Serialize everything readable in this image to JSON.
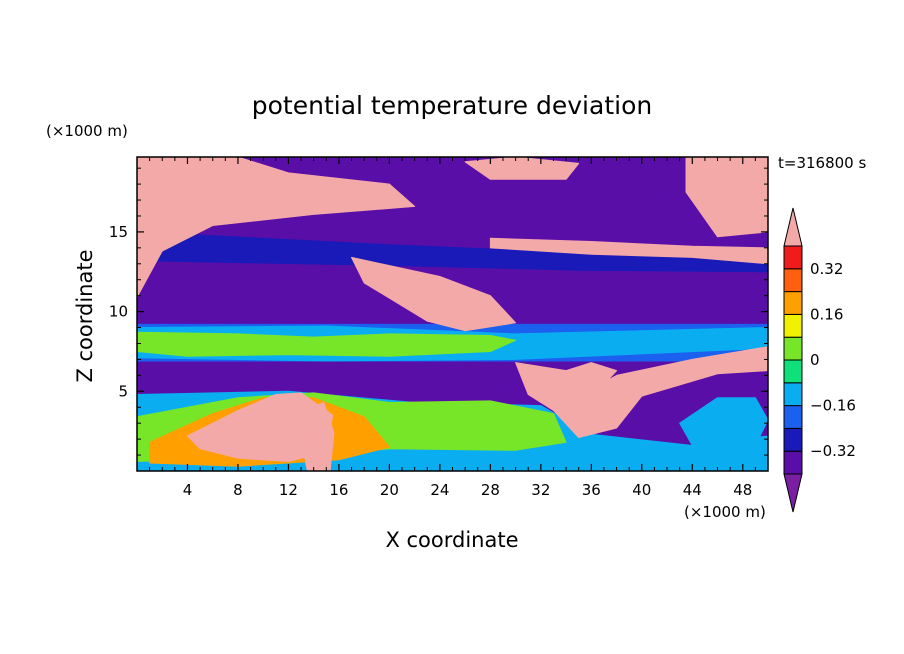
{
  "chart_data": {
    "type": "heatmap",
    "title": "potential temperature deviation",
    "xlabel": "X coordinate",
    "ylabel": "Z coordinate",
    "x_unit_label": "(×1000 m)",
    "y_unit_label": "(×1000 m)",
    "time_label": "t=316800 s",
    "xlim": [
      0,
      50
    ],
    "ylim": [
      0,
      19.7
    ],
    "x_ticks": [
      4,
      8,
      12,
      16,
      20,
      24,
      28,
      32,
      36,
      40,
      44,
      48
    ],
    "x_tick_labels": [
      "4",
      "8",
      "12",
      "16",
      "20",
      "24",
      "28",
      "32",
      "36",
      "40",
      "44",
      "48"
    ],
    "y_ticks": [
      5,
      10,
      15
    ],
    "y_tick_labels": [
      "5",
      "10",
      "15"
    ],
    "colorbar": {
      "levels": [
        -0.4,
        -0.32,
        -0.24,
        -0.16,
        -0.08,
        0,
        0.08,
        0.16,
        0.24,
        0.32,
        0.4
      ],
      "labeled_levels": [
        0.32,
        0.16,
        0,
        -0.16,
        -0.32
      ],
      "labels": [
        "0.32",
        "0.16",
        "0",
        "−0.16",
        "−0.32"
      ],
      "colors_low_to_high": [
        "#7b1fa2",
        "#5a0ea8",
        "#1a1ab8",
        "#1c60f0",
        "#0aaef0",
        "#10e07a",
        "#78e628",
        "#f0f000",
        "#ffa000",
        "#ff6010",
        "#f01c1c",
        "#f4a9a9"
      ],
      "extend": "both"
    },
    "regions": [
      {
        "name": "background-stable-layer",
        "value": -0.4,
        "poly": [
          [
            0,
            0
          ],
          [
            50,
            0
          ],
          [
            50,
            19.7
          ],
          [
            0,
            19.7
          ]
        ]
      },
      {
        "name": "low-level-band-negative",
        "value": -0.24,
        "poly": [
          [
            0,
            9.2
          ],
          [
            50,
            9.2
          ],
          [
            50,
            6.9
          ],
          [
            0,
            6.9
          ]
        ]
      },
      {
        "name": "low-level-band-core",
        "value": -0.12,
        "poly": [
          [
            0,
            9
          ],
          [
            15,
            9.1
          ],
          [
            30,
            8.6
          ],
          [
            50,
            9
          ],
          [
            50,
            7.7
          ],
          [
            30,
            7
          ],
          [
            15,
            6.9
          ],
          [
            0,
            7.1
          ]
        ]
      },
      {
        "name": "low-level-band-positive",
        "value": 0.05,
        "poly": [
          [
            0,
            8.7
          ],
          [
            8,
            8.6
          ],
          [
            14,
            8.4
          ],
          [
            20,
            8.6
          ],
          [
            28,
            8.5
          ],
          [
            30,
            8.2
          ],
          [
            28,
            7.5
          ],
          [
            20,
            7.2
          ],
          [
            12,
            7.3
          ],
          [
            4,
            7.2
          ],
          [
            0,
            7.5
          ]
        ]
      },
      {
        "name": "upper-band-negative",
        "value": -0.3,
        "poly": [
          [
            0,
            15
          ],
          [
            20,
            14.2
          ],
          [
            35,
            13.7
          ],
          [
            50,
            14
          ],
          [
            50,
            12.5
          ],
          [
            35,
            12.6
          ],
          [
            20,
            12.9
          ],
          [
            0,
            13.2
          ]
        ]
      },
      {
        "name": "upper-band-deep",
        "value": -0.35,
        "poly": [
          [
            0,
            17.2
          ],
          [
            25,
            16.8
          ],
          [
            50,
            17.3
          ],
          [
            50,
            16
          ],
          [
            25,
            15.9
          ],
          [
            0,
            16.2
          ]
        ]
      },
      {
        "name": "surface-layer-negative",
        "value": -0.15,
        "poly": [
          [
            0,
            4.8
          ],
          [
            12,
            5
          ],
          [
            22,
            4.3
          ],
          [
            32,
            4.1
          ],
          [
            36,
            2.3
          ],
          [
            44,
            1.6
          ],
          [
            50,
            2.2
          ],
          [
            50,
            0
          ],
          [
            0,
            0
          ]
        ]
      },
      {
        "name": "surface-layer-positive",
        "value": 0.05,
        "poly": [
          [
            0,
            3.4
          ],
          [
            8,
            4.6
          ],
          [
            14,
            4.9
          ],
          [
            20,
            4.3
          ],
          [
            28,
            4.4
          ],
          [
            33,
            3.6
          ],
          [
            34,
            1.8
          ],
          [
            30,
            1.3
          ],
          [
            20,
            1.4
          ],
          [
            12,
            0.8
          ],
          [
            0,
            0.6
          ]
        ]
      },
      {
        "name": "surface-warm-core",
        "value": 0.2,
        "poly": [
          [
            1,
            1.8
          ],
          [
            6,
            3.6
          ],
          [
            10,
            4.6
          ],
          [
            14,
            4.6
          ],
          [
            18,
            3.4
          ],
          [
            20,
            1.5
          ],
          [
            16,
            0.7
          ],
          [
            8,
            0.3
          ],
          [
            1,
            0.5
          ]
        ]
      },
      {
        "name": "surface-hot-core",
        "value": 0.4,
        "poly": [
          [
            4,
            2.2
          ],
          [
            8,
            3.8
          ],
          [
            11,
            4.8
          ],
          [
            13,
            4.9
          ],
          [
            15.5,
            3.5
          ],
          [
            15,
            1.2
          ],
          [
            12,
            0.6
          ],
          [
            8,
            0.8
          ],
          [
            5,
            1.4
          ]
        ]
      },
      {
        "name": "top-left-warm-patch",
        "value": 0.4,
        "poly": [
          [
            0,
            19.7
          ],
          [
            8,
            19.7
          ],
          [
            12,
            18.7
          ],
          [
            20,
            18
          ],
          [
            22,
            16.6
          ],
          [
            14,
            16.1
          ],
          [
            6,
            15.4
          ],
          [
            2,
            13.8
          ],
          [
            0,
            10.9
          ]
        ]
      },
      {
        "name": "top-right-warm-patch",
        "value": 0.4,
        "poly": [
          [
            43.5,
            19.7
          ],
          [
            50,
            19.7
          ],
          [
            50,
            15
          ],
          [
            46,
            14.7
          ],
          [
            43.5,
            17.5
          ]
        ]
      },
      {
        "name": "top-center-warm-patch",
        "value": 0.4,
        "poly": [
          [
            26,
            19.4
          ],
          [
            30,
            19.7
          ],
          [
            35,
            19.3
          ],
          [
            34,
            18.3
          ],
          [
            28,
            18.3
          ]
        ]
      },
      {
        "name": "upper-filament-warm",
        "value": 0.4,
        "poly": [
          [
            28,
            14.6
          ],
          [
            36,
            14.4
          ],
          [
            44,
            14.1
          ],
          [
            50,
            14
          ],
          [
            50,
            13
          ],
          [
            44,
            13.4
          ],
          [
            36,
            13.6
          ],
          [
            28,
            14
          ]
        ]
      },
      {
        "name": "diagonal-warm-filament",
        "value": 0.4,
        "poly": [
          [
            17,
            13.4
          ],
          [
            24,
            12.2
          ],
          [
            28,
            11
          ],
          [
            30,
            9.3
          ],
          [
            26,
            8.8
          ],
          [
            23,
            9.4
          ],
          [
            18,
            11.8
          ]
        ]
      },
      {
        "name": "right-warm-intrusion",
        "value": 0.4,
        "poly": [
          [
            33,
            3.8
          ],
          [
            38,
            6
          ],
          [
            44,
            7
          ],
          [
            50,
            7.8
          ],
          [
            50,
            6.3
          ],
          [
            46,
            6.1
          ],
          [
            40,
            4.7
          ],
          [
            38,
            2.7
          ],
          [
            35,
            2.1
          ]
        ]
      },
      {
        "name": "descending-warm-plume",
        "value": 0.4,
        "poly": [
          [
            30,
            6.8
          ],
          [
            34,
            6.3
          ],
          [
            36,
            6.8
          ],
          [
            38,
            6.3
          ],
          [
            36,
            4.6
          ],
          [
            33,
            3.8
          ],
          [
            31,
            4.8
          ]
        ]
      },
      {
        "name": "surface-warm-tongue",
        "value": 0.4,
        "poly": [
          [
            13.5,
            0
          ],
          [
            15.3,
            0
          ],
          [
            15.6,
            2.4
          ],
          [
            14.8,
            4.3
          ],
          [
            13.3,
            3.8
          ],
          [
            13.1,
            1.6
          ]
        ]
      },
      {
        "name": "right-bottom-eddy",
        "value": -0.1,
        "poly": [
          [
            43,
            3
          ],
          [
            46,
            4.6
          ],
          [
            49,
            4.6
          ],
          [
            50,
            3.2
          ],
          [
            49,
            1.6
          ],
          [
            46,
            1.3
          ],
          [
            44,
            1.6
          ]
        ]
      }
    ]
  }
}
